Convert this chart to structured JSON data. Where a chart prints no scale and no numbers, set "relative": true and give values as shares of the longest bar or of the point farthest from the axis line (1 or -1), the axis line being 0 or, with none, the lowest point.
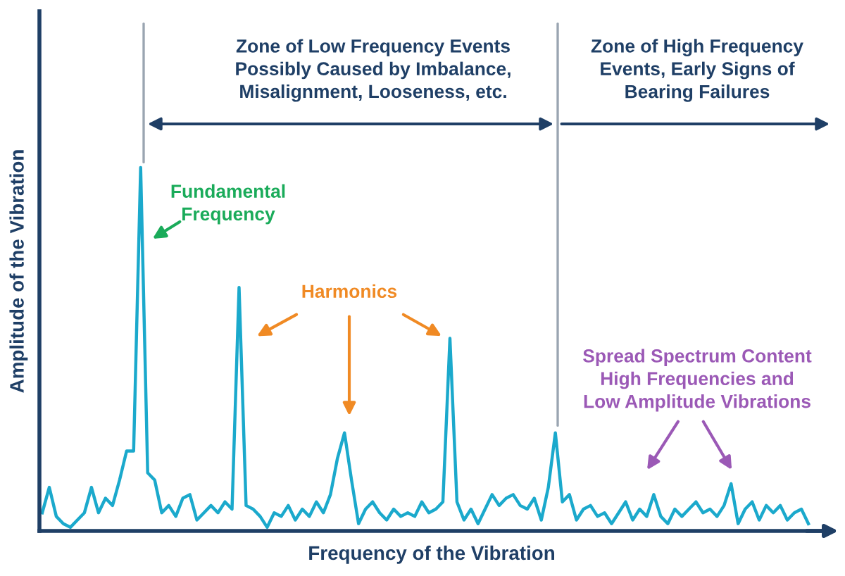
{
  "chart_data": {
    "type": "line",
    "relative": true,
    "xlabel": "Frequency of the Vibration",
    "ylabel": "Amplitude of the Vibration",
    "categories": [
      null,
      null,
      null,
      null,
      null,
      null,
      null,
      null,
      null,
      null,
      null,
      null,
      null,
      null,
      null,
      null,
      null,
      null,
      null,
      null,
      null,
      null,
      null,
      null,
      null,
      null,
      null,
      null,
      null,
      null,
      null,
      null,
      null,
      null,
      null,
      null,
      null,
      null,
      null,
      null,
      null,
      null,
      null,
      null,
      null,
      null,
      null,
      null,
      null,
      null,
      null,
      null,
      null,
      null,
      null,
      null,
      null,
      null,
      null,
      null,
      null,
      null,
      null,
      null,
      null,
      null,
      null,
      null,
      null,
      null,
      null,
      null,
      null,
      null,
      null,
      null,
      null,
      null,
      null,
      null,
      null,
      null,
      null,
      null,
      null,
      null,
      null,
      null,
      null,
      null,
      null,
      null,
      null,
      null,
      null,
      null,
      null,
      null,
      null,
      null,
      null,
      null,
      null,
      null,
      null,
      null,
      null,
      null,
      null,
      null
    ],
    "series": [
      {
        "color": "#1ba9cc",
        "values": [
          0.05,
          0.12,
          0.04,
          0.02,
          0.01,
          0.03,
          0.05,
          0.12,
          0.05,
          0.09,
          0.07,
          0.14,
          0.22,
          0.22,
          1.0,
          0.16,
          0.14,
          0.05,
          0.07,
          0.04,
          0.09,
          0.1,
          0.03,
          0.05,
          0.07,
          0.05,
          0.08,
          0.06,
          0.67,
          0.07,
          0.06,
          0.04,
          0.01,
          0.05,
          0.04,
          0.07,
          0.03,
          0.06,
          0.04,
          0.08,
          0.05,
          0.1,
          0.2,
          0.27,
          0.14,
          0.02,
          0.06,
          0.08,
          0.05,
          0.03,
          0.06,
          0.04,
          0.05,
          0.04,
          0.08,
          0.05,
          0.06,
          0.08,
          0.53,
          0.08,
          0.03,
          0.06,
          0.02,
          0.06,
          0.1,
          0.07,
          0.09,
          0.1,
          0.07,
          0.06,
          0.09,
          0.03,
          0.12,
          0.27,
          0.08,
          0.1,
          0.03,
          0.06,
          0.07,
          0.04,
          0.05,
          0.02,
          0.05,
          0.08,
          0.03,
          0.06,
          0.04,
          0.1,
          0.04,
          0.02,
          0.06,
          0.04,
          0.06,
          0.08,
          0.05,
          0.06,
          0.04,
          0.07,
          0.13,
          0.02,
          0.06,
          0.08,
          0.03,
          0.07,
          0.05,
          0.07,
          0.03,
          0.05,
          0.06,
          0.02
        ]
      }
    ],
    "annotations": [
      "Zone of Low Frequency Events\nPossibly Caused by Imbalance,\nMisalignment, Looseness, etc.",
      "Zone of High Frequency\nEvents, Early Signs of\nBearing Failures",
      "Fundamental\nFrequency",
      "Harmonics",
      "Spread Spectrum Content\nHigh Frequencies and\nLow Amplitude Vibrations"
    ],
    "grid": false,
    "legend": false
  }
}
